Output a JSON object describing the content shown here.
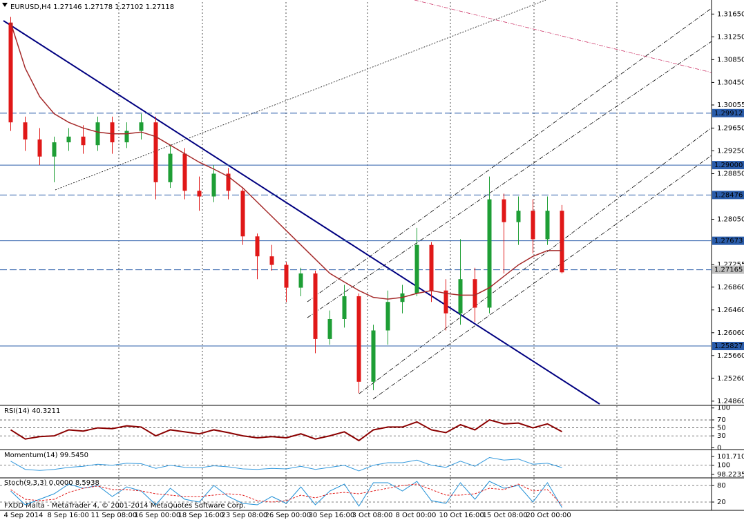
{
  "chart_data": [
    {
      "type": "candlestick",
      "title": "EURUSD,H4  1.27146 1.27178 1.27102 1.27118",
      "categories": [
        "4 Sep 2014",
        null,
        null,
        "8 Sep 16:00",
        null,
        null,
        "11 Sep 08:00",
        null,
        null,
        "16 Sep 00:00",
        null,
        null,
        "18 Sep 16:00",
        null,
        null,
        "23 Sep 08:00",
        null,
        null,
        "26 Sep 00:00",
        null,
        null,
        "30 Sep 16:00",
        null,
        null,
        "3 Oct 08:00",
        null,
        null,
        "8 Oct 00:00",
        null,
        null,
        "10 Oct 16:00",
        null,
        null,
        "15 Oct 08:00",
        null,
        null,
        "20 Oct 00:00",
        null,
        null
      ],
      "open": [
        1.315,
        1.2975,
        1.2945,
        1.2915,
        1.294,
        1.295,
        1.2935,
        1.2975,
        1.294,
        1.296,
        1.2975,
        1.287,
        1.292,
        1.2855,
        1.2845,
        1.2885,
        1.2855,
        1.2775,
        1.274,
        1.2725,
        1.2685,
        1.271,
        1.2595,
        1.263,
        1.267,
        1.252,
        1.261,
        1.266,
        1.2675,
        1.276,
        1.268,
        1.264,
        1.27,
        1.265,
        1.284,
        1.28,
        1.282,
        1.277,
        1.282
      ],
      "high": [
        1.316,
        1.2985,
        1.2965,
        1.295,
        1.2965,
        1.297,
        1.2985,
        1.2985,
        1.2975,
        1.299,
        1.2985,
        1.2935,
        1.293,
        1.288,
        1.29,
        1.2895,
        1.286,
        1.278,
        1.276,
        1.273,
        1.272,
        1.2715,
        1.2645,
        1.269,
        1.2675,
        1.262,
        1.268,
        1.269,
        1.279,
        1.2765,
        1.27,
        1.277,
        1.272,
        1.288,
        1.285,
        1.2845,
        1.284,
        1.2845,
        1.283
      ],
      "low": [
        1.296,
        1.2925,
        1.29,
        1.287,
        1.2925,
        1.292,
        1.2925,
        1.292,
        1.293,
        1.2945,
        1.284,
        1.286,
        1.284,
        1.282,
        1.2835,
        1.284,
        1.276,
        1.27,
        1.2715,
        1.266,
        1.267,
        1.257,
        1.2585,
        1.2615,
        1.25,
        1.2505,
        1.2585,
        1.264,
        1.267,
        1.266,
        1.261,
        1.262,
        1.2625,
        1.264,
        1.271,
        1.276,
        1.2745,
        1.276,
        1.271
      ],
      "close": [
        1.2975,
        1.2945,
        1.2915,
        1.294,
        1.295,
        1.2935,
        1.2975,
        1.294,
        1.296,
        1.2975,
        1.287,
        1.292,
        1.2855,
        1.2845,
        1.2885,
        1.2855,
        1.2775,
        1.274,
        1.2725,
        1.2685,
        1.271,
        1.2595,
        1.263,
        1.267,
        1.252,
        1.261,
        1.266,
        1.2675,
        1.276,
        1.268,
        1.264,
        1.27,
        1.265,
        1.284,
        1.28,
        1.282,
        1.277,
        1.282,
        1.2712
      ],
      "up_color": "#1e9e35",
      "down_color": "#e01818",
      "ma_values": [
        1.315,
        1.307,
        1.302,
        1.299,
        1.2975,
        1.2965,
        1.2958,
        1.2955,
        1.2955,
        1.2958,
        1.295,
        1.2935,
        1.292,
        1.2905,
        1.2893,
        1.288,
        1.286,
        1.2835,
        1.281,
        1.2785,
        1.276,
        1.2735,
        1.271,
        1.2695,
        1.268,
        1.2668,
        1.2665,
        1.2668,
        1.2675,
        1.268,
        1.2675,
        1.2672,
        1.2672,
        1.2685,
        1.2705,
        1.2725,
        1.274,
        1.275,
        1.275
      ],
      "ma_color": "#a52a2a",
      "ylim": [
        1.2481,
        1.3186
      ],
      "yticks": [
        {
          "value": 1.3165,
          "label": "1.31650"
        },
        {
          "value": 1.3125,
          "label": "1.31250"
        },
        {
          "value": 1.3085,
          "label": "1.30850"
        },
        {
          "value": 1.3045,
          "label": "1.30450"
        },
        1.30055,
        {
          "value": 1.2965,
          "label": "1.29650"
        },
        {
          "value": 1.2925,
          "label": "1.29250"
        },
        {
          "value": 1.2885,
          "label": "1.28850"
        },
        {
          "value": 1.2805,
          "label": "1.28050"
        },
        1.27255,
        {
          "value": 1.2686,
          "label": "1.26860"
        },
        {
          "value": 1.2646,
          "label": "1.26460"
        },
        {
          "value": 1.2606,
          "label": "1.26060"
        },
        {
          "value": 1.2566,
          "label": "1.25660"
        },
        {
          "value": 1.2526,
          "label": "1.25260"
        },
        {
          "value": 1.2486,
          "label": "1.24860"
        }
      ],
      "levels": [
        1.29912,
        {
          "value": 1.29,
          "label": "1.29000"
        },
        1.28476,
        1.27673,
        1.27165,
        1.25827
      ],
      "level_color": "#2a5caa"
    },
    {
      "type": "line",
      "title": "RSI(14) 40.3211",
      "series": [
        {
          "color": "#8b0000",
          "values": [
            45,
            22,
            28,
            30,
            45,
            42,
            50,
            48,
            55,
            52,
            30,
            45,
            40,
            35,
            45,
            38,
            30,
            25,
            28,
            25,
            35,
            22,
            30,
            40,
            18,
            45,
            52,
            52,
            65,
            45,
            38,
            58,
            45,
            70,
            60,
            62,
            50,
            60,
            40.3211
          ]
        }
      ],
      "ylim": [
        -1,
        103
      ],
      "yticks": [
        100,
        70,
        50,
        30,
        0
      ],
      "grid_ticks": [
        70,
        50,
        30
      ]
    },
    {
      "type": "line",
      "title": "Momentum(14) 99.5450",
      "series": [
        {
          "color": "#3399dd",
          "values": [
            100.8,
            99.2,
            99.0,
            99.2,
            99.6,
            99.8,
            100.2,
            100.0,
            100.4,
            100.3,
            99.4,
            100.0,
            99.6,
            99.5,
            99.9,
            99.7,
            99.3,
            99.2,
            99.4,
            99.3,
            99.8,
            99.2,
            99.6,
            100.0,
            98.9,
            100.0,
            100.5,
            100.5,
            101.0,
            100.0,
            99.6,
            100.8,
            99.8,
            101.5,
            101.0,
            101.2,
            100.2,
            100.4,
            99.545
          ]
        }
      ],
      "ylim": [
        97.82,
        102.78
      ],
      "yticks": [
        101.7105,
        100,
        98.2235
      ],
      "grid_ticks": [
        100
      ]
    },
    {
      "type": "line",
      "title": "Stoch(9,3,3) 0.0000 8.5938",
      "series": [
        {
          "color": "#1f8fd6",
          "values": [
            60,
            10,
            30,
            50,
            85,
            70,
            80,
            40,
            75,
            60,
            10,
            70,
            30,
            20,
            80,
            40,
            15,
            10,
            40,
            15,
            75,
            10,
            60,
            85,
            5,
            90,
            90,
            60,
            95,
            25,
            15,
            90,
            30,
            95,
            70,
            80,
            20,
            90,
            0
          ]
        },
        {
          "color": "#e01818",
          "dashed": true,
          "values": [
            65,
            30,
            25,
            30,
            55,
            70,
            78,
            65,
            65,
            60,
            50,
            45,
            40,
            40,
            45,
            50,
            45,
            25,
            20,
            25,
            45,
            35,
            50,
            55,
            50,
            60,
            70,
            80,
            85,
            65,
            45,
            45,
            50,
            70,
            65,
            85,
            60,
            65,
            8.5938
          ]
        }
      ],
      "ylim": [
        -7.5,
        105
      ],
      "yticks": [
        80,
        20
      ],
      "grid_ticks": [
        80,
        20
      ]
    }
  ],
  "footer": "FXDD Malta - MetaTrader 4, © 2001-2014 MetaQuotes Software Corp."
}
